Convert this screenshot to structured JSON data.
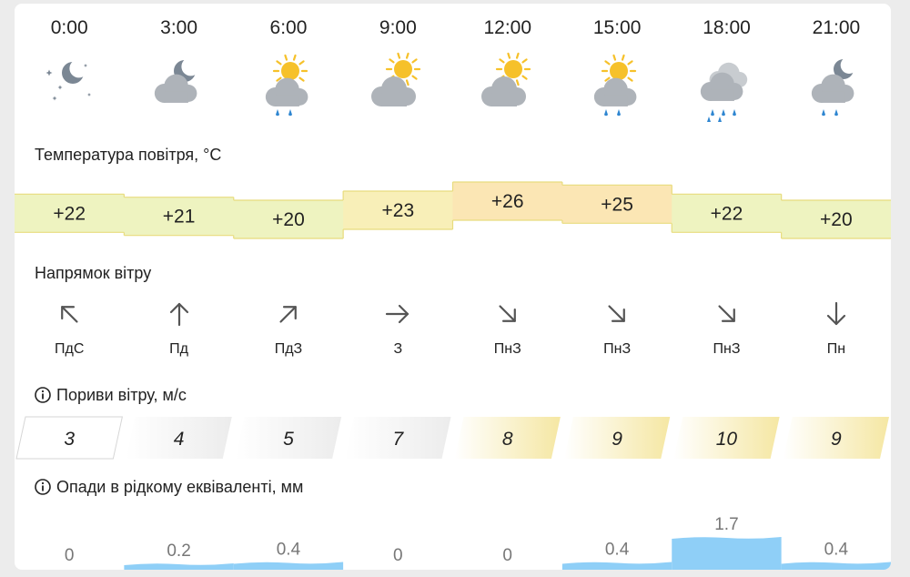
{
  "hours": [
    "0:00",
    "3:00",
    "6:00",
    "9:00",
    "12:00",
    "15:00",
    "18:00",
    "21:00"
  ],
  "weather_icons": [
    "moon-stars-icon",
    "moon-cloud-icon",
    "sun-cloud-rain-icon",
    "sun-cloud-icon",
    "sun-cloud-icon",
    "sun-cloud-rain-icon",
    "cloud-heavy-rain-icon",
    "moon-cloud-rain-icon"
  ],
  "temperature": {
    "title": "Температура повітря, °C",
    "values": [
      22,
      21,
      20,
      23,
      26,
      25,
      22,
      20
    ],
    "labels": [
      "+22",
      "+21",
      "+20",
      "+23",
      "+26",
      "+25",
      "+22",
      "+20"
    ]
  },
  "wind_direction": {
    "title": "Напрямок вітру",
    "directions": [
      "ПдС",
      "Пд",
      "ПдЗ",
      "З",
      "ПнЗ",
      "ПнЗ",
      "ПнЗ",
      "Пн"
    ],
    "arrow_angles_deg": [
      315,
      0,
      45,
      90,
      135,
      135,
      135,
      180
    ]
  },
  "wind_gusts": {
    "title": "Пориви вітру, м/с",
    "values": [
      3,
      4,
      5,
      7,
      8,
      9,
      10,
      9
    ],
    "labels": [
      "3",
      "4",
      "5",
      "7",
      "8",
      "9",
      "10",
      "9"
    ]
  },
  "precipitation": {
    "title": "Опади в рідкому еквіваленті, мм",
    "values": [
      0,
      0.2,
      0.4,
      0,
      0,
      0.4,
      1.7,
      0.4
    ],
    "labels": [
      "0",
      "0.2",
      "0.4",
      "0",
      "0",
      "0.4",
      "1.7",
      "0.4"
    ]
  },
  "colors": {
    "temp_low": "#eef3c0",
    "temp_mid": "#f8efb8",
    "temp_high": "#fbe6b4",
    "temp_line": "#e8dc7e",
    "gust_white": "#ffffff",
    "gust_gray": "#ececec",
    "gust_yellow": "#f5e7a3",
    "precip_blue": "#8fcff7",
    "icon_gray": "#aeb3b9",
    "icon_sun": "#f6c12a",
    "icon_rain": "#2f86d1",
    "moon": "#7b8794"
  }
}
